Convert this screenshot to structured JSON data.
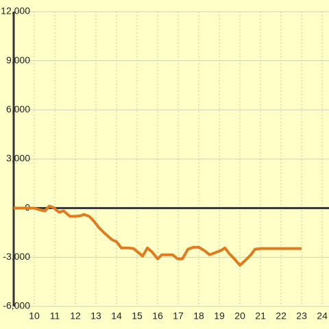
{
  "chart_data": {
    "type": "line",
    "x": [
      9.0,
      10.0,
      10.33,
      10.53,
      10.73,
      10.93,
      11.2,
      11.43,
      11.73,
      12.0,
      12.27,
      12.4,
      12.67,
      12.87,
      13.13,
      13.4,
      13.77,
      14.0,
      14.23,
      14.6,
      14.83,
      15.03,
      15.27,
      15.5,
      15.73,
      16.0,
      16.2,
      16.53,
      16.73,
      16.97,
      17.2,
      17.47,
      17.73,
      18.0,
      18.27,
      18.53,
      18.8,
      19.07,
      19.27,
      19.47,
      19.73,
      20.0,
      20.27,
      20.53,
      20.73,
      21.0,
      23.0
    ],
    "series": [
      {
        "color": "#e07b20",
        "values": [
          0,
          0,
          -125,
          -170,
          125,
          40,
          -250,
          -170,
          -500,
          -500,
          -460,
          -380,
          -500,
          -750,
          -1170,
          -1510,
          -1920,
          -2050,
          -2430,
          -2430,
          -2470,
          -2680,
          -2930,
          -2430,
          -2680,
          -3100,
          -2850,
          -2850,
          -2850,
          -3100,
          -3100,
          -2510,
          -2390,
          -2390,
          -2590,
          -2850,
          -2720,
          -2590,
          -2430,
          -2760,
          -3100,
          -3490,
          -3180,
          -2850,
          -2510,
          -2470,
          -2470
        ]
      }
    ],
    "xlim": [
      9,
      24.33
    ],
    "xticks": [
      10,
      11,
      12,
      13,
      14,
      15,
      16,
      17,
      18,
      19,
      20,
      21,
      22,
      23,
      24
    ],
    "ylim": [
      -6000,
      12000
    ],
    "yticks": [
      {
        "value": -6000,
        "label": "-6,000"
      },
      {
        "value": -3000,
        "label": "-3,000"
      },
      0,
      {
        "value": 3000,
        "label": "3,000"
      },
      {
        "value": 6000,
        "label": "6,000"
      },
      {
        "value": 9000,
        "label": "9,000"
      },
      {
        "value": 12000,
        "label": "12,000"
      }
    ],
    "grid": true
  }
}
